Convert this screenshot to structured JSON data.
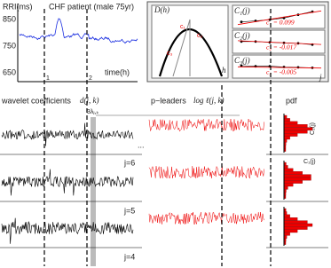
{
  "top_left": {
    "y_label": "RRI(ms)",
    "y_ticks": [
      "850",
      "750",
      "650"
    ],
    "title": "CHF patient (male 75yr)",
    "x_label": "time(h)",
    "x_ticks": [
      "1",
      "2"
    ]
  },
  "top_right": {
    "spectrum_label": "D(h)",
    "h_label": "h",
    "curve_labels": [
      "c₁",
      "c₂",
      "c₃"
    ],
    "panels": [
      {
        "label": "C₁(j)",
        "estimate": "c₁ = 0.099"
      },
      {
        "label": "C₂(j)",
        "estimate": "c₂ = -0.017"
      },
      {
        "label": "C₃(j)",
        "estimate": "c₃ = -0.005"
      }
    ],
    "j_label": "j"
  },
  "bottom": {
    "left_title": "wavelet coefficients",
    "left_symbol": "d(j, k)",
    "middle_title": "p−leaders",
    "middle_symbol": "log ℓ(j, k)",
    "right_title": "pdf",
    "lambda_label": "3λⱼ,ₖ",
    "scales": [
      "j=6",
      "j=5",
      "j=4"
    ],
    "ellipsis": "...",
    "pdf_labels": [
      "C₂(j)",
      "C₁(j)"
    ]
  }
}
